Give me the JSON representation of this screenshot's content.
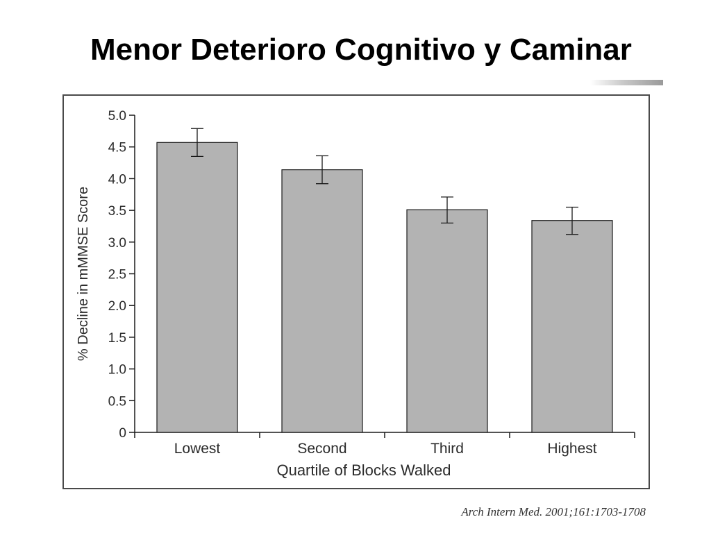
{
  "slide": {
    "title": "Menor Deterioro Cognitivo y Caminar",
    "citation": "Arch Intern Med. 2001;161:1703-1708"
  },
  "colors": {
    "bar_fill": "#b3b3b3",
    "bar_stroke": "#1a1a1a",
    "axis": "#1a1a1a",
    "frame": "#4a4a4a"
  },
  "chart_data": {
    "type": "bar",
    "title": "",
    "xlabel": "Quartile of Blocks Walked",
    "ylabel": "% Decline in mMMSE Score",
    "categories": [
      "Lowest",
      "Second",
      "Third",
      "Highest"
    ],
    "values": [
      4.57,
      4.14,
      3.51,
      3.34
    ],
    "error_low": [
      4.35,
      3.92,
      3.3,
      3.12
    ],
    "error_high": [
      4.79,
      4.36,
      3.71,
      3.55
    ],
    "ylim": [
      0,
      5.0
    ],
    "yticks": [
      0,
      0.5,
      1.0,
      1.5,
      2.0,
      2.5,
      3.0,
      3.5,
      4.0,
      4.5,
      5.0
    ],
    "ytick_labels": [
      "0",
      "0.5",
      "1.0",
      "1.5",
      "2.0",
      "2.5",
      "3.0",
      "3.5",
      "4.0",
      "4.5",
      "5.0"
    ],
    "grid": false,
    "legend": "none"
  }
}
